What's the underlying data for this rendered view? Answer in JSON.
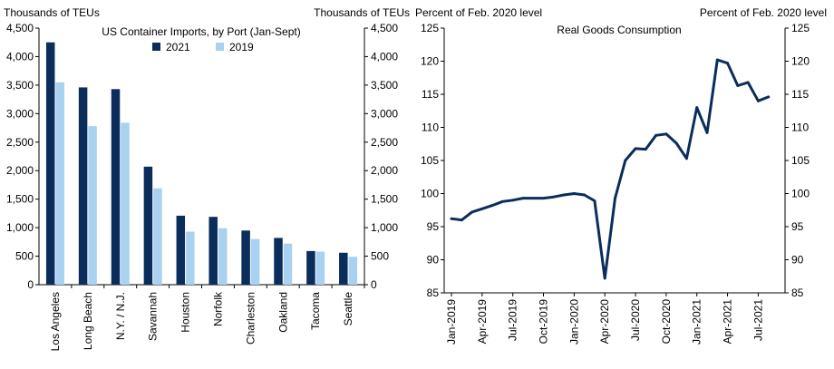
{
  "chart_data": [
    {
      "type": "bar",
      "title": "US Container Imports, by Port (Jan-Sept)",
      "ylabel_left": "Thousands of TEUs",
      "ylabel_right": "Thousands of TEUs",
      "ylim": [
        0,
        4500
      ],
      "yticks": [
        "0",
        "500",
        "1,000",
        "1,500",
        "2,000",
        "2,500",
        "3,000",
        "3,500",
        "4,000",
        "4,500"
      ],
      "ytick_values": [
        0,
        500,
        1000,
        1500,
        2000,
        2500,
        3000,
        3500,
        4000,
        4500
      ],
      "categories": [
        "Los Angeles",
        "Long Beach",
        "N.Y. / N.J.",
        "Savannah",
        "Houston",
        "Norfolk",
        "Charleston",
        "Oakland",
        "Tacoma",
        "Seattle"
      ],
      "series": [
        {
          "name": "2021",
          "color": "#0b2d5c",
          "values": [
            4250,
            3460,
            3430,
            2070,
            1210,
            1190,
            950,
            820,
            590,
            560
          ]
        },
        {
          "name": "2019",
          "color": "#a9d1f0",
          "values": [
            3550,
            2780,
            2840,
            1690,
            930,
            990,
            800,
            720,
            580,
            490
          ]
        }
      ],
      "legend": "top-center"
    },
    {
      "type": "line",
      "title": "Real Goods Consumption",
      "ylabel_left": "Percent of Feb. 2020 level",
      "ylabel_right": "Percent of Feb. 2020 level",
      "ylim": [
        85,
        125
      ],
      "yticks": [
        "85",
        "90",
        "95",
        "100",
        "105",
        "110",
        "115",
        "120",
        "125"
      ],
      "ytick_values": [
        85,
        90,
        95,
        100,
        105,
        110,
        115,
        120,
        125
      ],
      "xticks": [
        {
          "label": "Jan-2019",
          "index": 0
        },
        {
          "label": "Apr-2019",
          "index": 3
        },
        {
          "label": "Jul-2019",
          "index": 6
        },
        {
          "label": "Oct-2019",
          "index": 9
        },
        {
          "label": "Jan-2020",
          "index": 12
        },
        {
          "label": "Apr-2020",
          "index": 15
        },
        {
          "label": "Jul-2020",
          "index": 18
        },
        {
          "label": "Oct-2020",
          "index": 21
        },
        {
          "label": "Jan-2021",
          "index": 24
        },
        {
          "label": "Apr-2021",
          "index": 27
        },
        {
          "label": "Jul-2021",
          "index": 30
        }
      ],
      "series": [
        {
          "name": "Real Goods Consumption",
          "color": "#0b2d5c",
          "values": [
            96.2,
            96.0,
            97.2,
            97.7,
            98.2,
            98.8,
            99.0,
            99.3,
            99.3,
            99.3,
            99.5,
            99.8,
            100.0,
            99.8,
            98.9,
            87.2,
            99.3,
            105.0,
            106.8,
            106.7,
            108.8,
            109.0,
            107.6,
            105.3,
            113.0,
            109.2,
            120.2,
            119.7,
            116.3,
            116.8,
            114.0,
            114.6
          ]
        }
      ]
    }
  ]
}
